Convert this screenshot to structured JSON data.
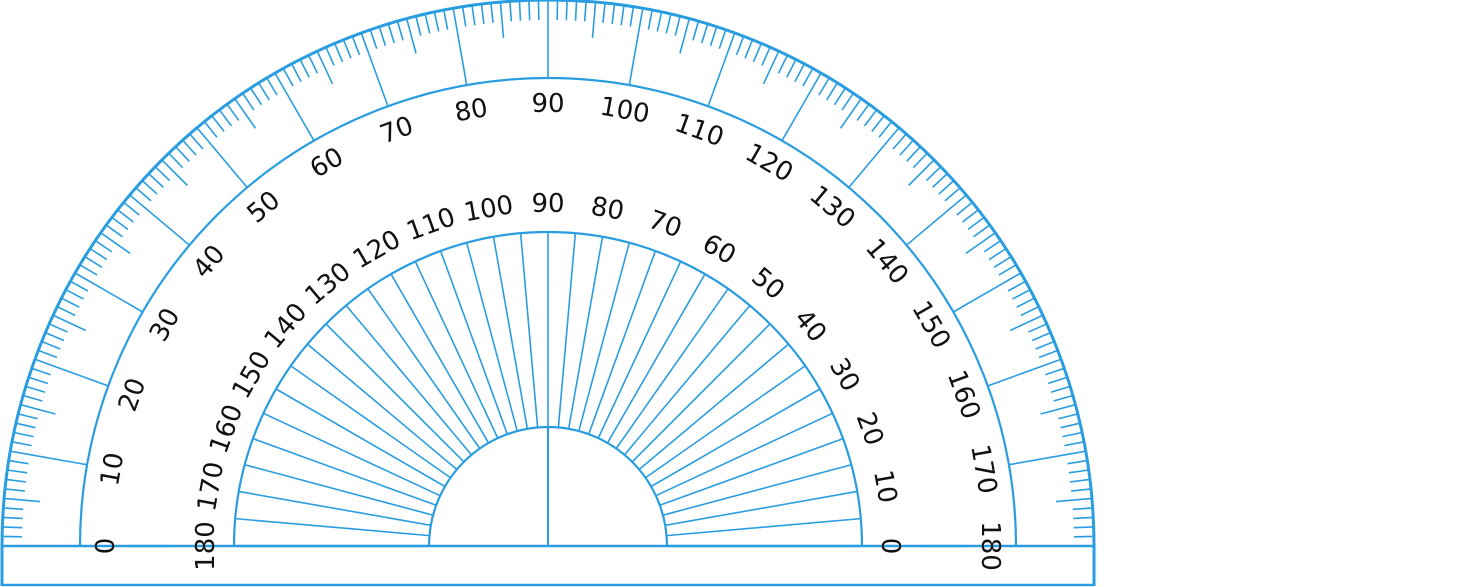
{
  "protractor": {
    "outer_scale": {
      "direction": "counterclockwise-from-left",
      "labels": [
        "0",
        "10",
        "20",
        "30",
        "40",
        "50",
        "60",
        "70",
        "80",
        "90",
        "100",
        "110",
        "120",
        "130",
        "140",
        "150",
        "160",
        "170",
        "180"
      ]
    },
    "inner_scale": {
      "direction": "clockwise-from-left",
      "labels": [
        "180",
        "170",
        "160",
        "150",
        "140",
        "130",
        "120",
        "110",
        "100",
        "90",
        "80",
        "70",
        "60",
        "50",
        "40",
        "30",
        "20",
        "10",
        "0"
      ]
    },
    "right_outer_label": "180",
    "right_inner_label": "0",
    "minor_tick_step_degrees": 1,
    "major_tick_step_degrees": 10,
    "inner_ray_step_degrees": 5,
    "colors": {
      "line": "#2a9de0",
      "text": "#111111",
      "background": "#ffffff"
    }
  }
}
